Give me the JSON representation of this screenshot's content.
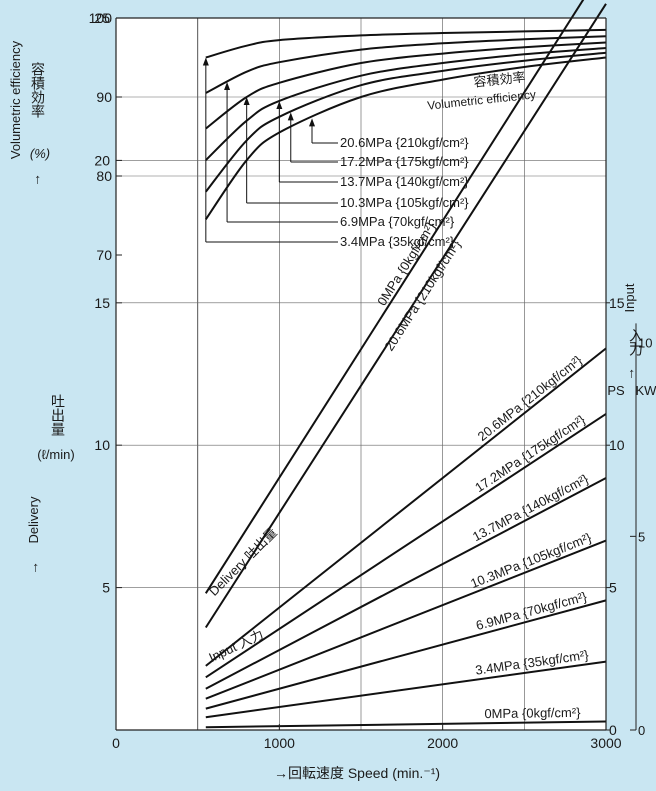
{
  "chart_data": {
    "type": "line",
    "x": {
      "label": "→回転速度 Speed (min.⁻¹)",
      "range": [
        0,
        3000
      ],
      "ticks": [
        "0",
        "1000",
        "2000",
        "3000"
      ],
      "tick_values": [
        0,
        1000,
        2000,
        3000
      ]
    },
    "volumetric_axis": {
      "label_en": "Volumetric efficiency",
      "label_ja": "容積効率",
      "unit": "(%)",
      "arrow": "→",
      "range": [
        70,
        100
      ],
      "ticks": [
        "70",
        "80",
        "90",
        "100"
      ],
      "tick_values": [
        70,
        80,
        90,
        100
      ]
    },
    "delivery_axis": {
      "label_en": "Delivery",
      "label_ja": "吐出量",
      "unit": "(ℓ/min)",
      "arrow": "→",
      "range": [
        0,
        25
      ],
      "ticks": [
        "5",
        "10",
        "15",
        "20",
        "25"
      ],
      "tick_values": [
        5,
        10,
        15,
        20,
        25
      ]
    },
    "input_ps_axis": {
      "label": "PS",
      "range": [
        0,
        15
      ],
      "ticks": [
        "0",
        "5",
        "10",
        "15"
      ],
      "tick_values": [
        0,
        5,
        10,
        15
      ]
    },
    "input_kw_axis": {
      "label": "KW",
      "range": [
        0,
        11.03
      ],
      "ticks": [
        "0",
        "5",
        "10"
      ],
      "tick_values": [
        0,
        5,
        10
      ]
    },
    "input_axis_title": {
      "en": "Input",
      "ja": "入力",
      "arrow": "→"
    },
    "volumetric_efficiency": {
      "group_label_ja": "容積効率",
      "group_label_en": "Volumetric efficiency",
      "series": [
        {
          "name": "20.6MPa {210kgf/cm²}",
          "x": [
            550,
            800,
            1000,
            1500,
            2000,
            2500,
            3000
          ],
          "y": [
            74.5,
            82,
            85.5,
            90,
            92.2,
            93.8,
            95
          ]
        },
        {
          "name": "17.2MPa {175kgf/cm²}",
          "x": [
            550,
            800,
            1000,
            1500,
            2000,
            2500,
            3000
          ],
          "y": [
            78,
            84.5,
            87.5,
            91.5,
            93.3,
            94.6,
            95.6
          ]
        },
        {
          "name": "13.7MPa {140kgf/cm²}",
          "x": [
            550,
            800,
            1000,
            1500,
            2000,
            2500,
            3000
          ],
          "y": [
            82,
            87,
            89.5,
            92.7,
            94.3,
            95.4,
            96.2
          ]
        },
        {
          "name": "10.3MPa {105kgf/cm²}",
          "x": [
            550,
            800,
            1000,
            1500,
            2000,
            2500,
            3000
          ],
          "y": [
            86,
            90,
            91.8,
            94.3,
            95.5,
            96.3,
            96.9
          ]
        },
        {
          "name": "6.9MPa {70kgf/cm²}",
          "x": [
            550,
            800,
            1000,
            1500,
            2000,
            2500,
            3000
          ],
          "y": [
            90.5,
            93.2,
            94.4,
            96,
            96.8,
            97.3,
            97.7
          ]
        },
        {
          "name": "3.4MPa {35kgf/cm²}",
          "x": [
            550,
            800,
            1000,
            1500,
            2000,
            2500,
            3000
          ],
          "y": [
            95,
            96.5,
            97.2,
            97.8,
            98.1,
            98.3,
            98.5
          ]
        }
      ]
    },
    "delivery": {
      "group_label": "Delivery 吐出量",
      "series": [
        {
          "name": "0MPa {0kgf/cm²}",
          "x": [
            550,
            3000
          ],
          "y": [
            4.8,
            26.9
          ]
        },
        {
          "name": "20.6MPa {210kgf/cm²}",
          "x": [
            550,
            3000
          ],
          "y": [
            3.6,
            25.5
          ]
        }
      ]
    },
    "input": {
      "group_label": "Input 入力",
      "series": [
        {
          "name": "20.6MPa {210kgf/cm²}",
          "x": [
            550,
            3000
          ],
          "y": [
            2.25,
            13.4
          ]
        },
        {
          "name": "17.2MPa {175kgf/cm²}",
          "x": [
            550,
            3000
          ],
          "y": [
            1.85,
            11.1
          ]
        },
        {
          "name": "13.7MPa {140kgf/cm²}",
          "x": [
            550,
            3000
          ],
          "y": [
            1.45,
            8.85
          ]
        },
        {
          "name": "10.3MPa {105kgf/cm²}",
          "x": [
            550,
            3000
          ],
          "y": [
            1.1,
            6.65
          ]
        },
        {
          "name": "6.9MPa {70kgf/cm²}",
          "x": [
            550,
            3000
          ],
          "y": [
            0.75,
            4.55
          ]
        },
        {
          "name": "3.4MPa {35kgf/cm²}",
          "x": [
            550,
            3000
          ],
          "y": [
            0.45,
            2.4
          ]
        },
        {
          "name": "0MPa {0kgf/cm²}",
          "x": [
            550,
            3000
          ],
          "y": [
            0.1,
            0.3
          ]
        }
      ]
    },
    "grid": true
  }
}
